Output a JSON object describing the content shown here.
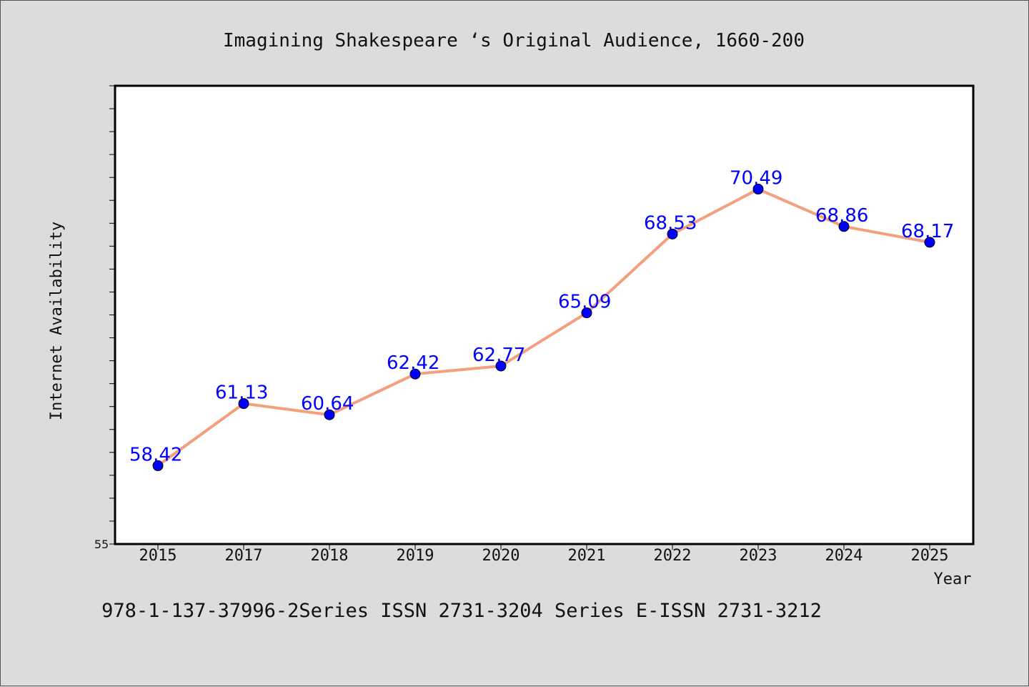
{
  "chart_data": {
    "type": "line",
    "title": "Imagining Shakespeare ‘s Original Audience, 1660-200",
    "xlabel": "Year",
    "ylabel": "Internet Availability",
    "categories": [
      "2015",
      "2017",
      "2018",
      "2019",
      "2020",
      "2021",
      "2022",
      "2023",
      "2024",
      "2025"
    ],
    "series": [
      {
        "values": [
          58.42,
          61.13,
          60.64,
          62.42,
          62.77,
          65.09,
          68.53,
          70.49,
          68.86,
          68.17
        ],
        "labels": [
          "58.42",
          "61.13",
          "60.64",
          "62.42",
          "62.77",
          "65.09",
          "68.53",
          "70.49",
          "68.86",
          "68.17"
        ]
      }
    ],
    "ylim": [
      55,
      75
    ],
    "ytick_min_label": "55",
    "grid": false,
    "line_color": "#f4a07e",
    "marker_color": "#0000ff",
    "label_color": "#0000ff"
  },
  "footer": {
    "text": "978-1-137-37996-2Series ISSN 2731-3204 Series E-ISSN 2731-3212"
  }
}
